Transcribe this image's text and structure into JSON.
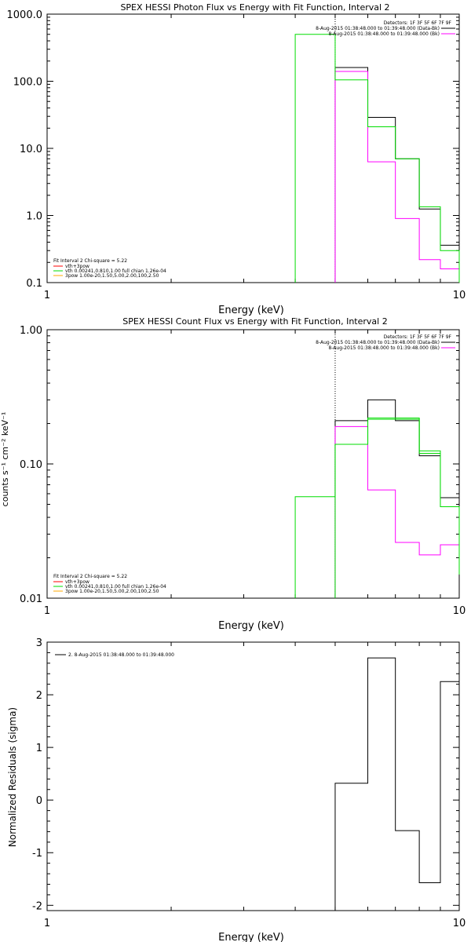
{
  "chart_data": [
    {
      "type": "line",
      "title": "SPEX HESSI Photon Flux vs Energy with Fit Function, Interval 2",
      "xlabel": "Energy (keV)",
      "ylabel": "",
      "xscale": "log",
      "yscale": "log",
      "xlim": [
        1,
        10
      ],
      "ylim": [
        0.1,
        1000
      ],
      "x_ticks": [
        {
          "v": 1,
          "label": "1"
        },
        {
          "v": 10,
          "label": "10"
        }
      ],
      "y_ticks": [
        {
          "v": 0.1,
          "label": "0.1"
        },
        {
          "v": 1,
          "label": "1.0"
        },
        {
          "v": 10,
          "label": "10.0"
        },
        {
          "v": 100,
          "label": "100.0"
        },
        {
          "v": 1000,
          "label": "1000.0"
        }
      ],
      "vline": 5,
      "bins": [
        4,
        5,
        6,
        7,
        8,
        9,
        10
      ],
      "series": [
        {
          "name": "8-Aug-2015 01:38:48.000 to 01:39:48.000 (Data-Bk)",
          "color": "#000000",
          "values": [
            null,
            160,
            29,
            7.0,
            1.25,
            0.36,
            0.13
          ]
        },
        {
          "name": "8-Aug-2015 01:38:48.000 to 01:39:48.000 (Bk)",
          "color": "#ff00ff",
          "values": [
            null,
            140,
            6.3,
            0.9,
            0.22,
            0.16,
            0.21
          ]
        },
        {
          "name": "",
          "color": "#00dd00",
          "values": [
            500,
            105,
            21,
            7.0,
            1.35,
            0.3,
            0.1
          ]
        }
      ],
      "legend_right": {
        "detectors": "Detectors: 1F 3F 5F 6F 7F 9F",
        "entries": [
          {
            "text": "8-Aug-2015 01:38:48.000 to 01:39:48.000 (Data-Bk)",
            "color": "#000000"
          },
          {
            "text": "8-Aug-2015 01:38:48.000 to 01:39:48.000 (Bk)",
            "color": "#ff00ff"
          }
        ]
      },
      "legend_left": {
        "heading": "Fit Interval 2   Chi-square = 5.22",
        "entries": [
          {
            "text": "vth+3pow",
            "color": "#ff0000"
          },
          {
            "text": "vth 0.00241,0.810,1.00  full chian 1.26e-04",
            "color": "#00dd00"
          },
          {
            "text": "3pow 1.00e-20,1.50,5.00,2.00,100,2.50",
            "color": "#ffaa00"
          }
        ]
      }
    },
    {
      "type": "line",
      "title": "SPEX HESSI Count Flux vs Energy with Fit Function, Interval 2",
      "xlabel": "Energy (keV)",
      "ylabel": "counts s⁻¹ cm⁻² keV⁻¹",
      "xscale": "log",
      "yscale": "log",
      "xlim": [
        1,
        10
      ],
      "ylim": [
        0.01,
        1
      ],
      "x_ticks": [
        {
          "v": 1,
          "label": "1"
        },
        {
          "v": 10,
          "label": "10"
        }
      ],
      "y_ticks": [
        {
          "v": 0.01,
          "label": "0.01"
        },
        {
          "v": 0.1,
          "label": "0.10"
        },
        {
          "v": 1,
          "label": "1.00"
        }
      ],
      "vline": 5,
      "bins": [
        4,
        5,
        6,
        7,
        8,
        9,
        10
      ],
      "series": [
        {
          "name": "8-Aug-2015 01:38:48.000 to 01:39:48.000 (Data-Bk)",
          "color": "#000000",
          "values": [
            null,
            0.21,
            0.3,
            0.21,
            0.115,
            0.056,
            0.025
          ]
        },
        {
          "name": "8-Aug-2015 01:38:48.000 to 01:39:48.000 (Bk)",
          "color": "#ff00ff",
          "values": [
            null,
            0.19,
            0.064,
            0.026,
            0.021,
            0.025,
            0.041
          ]
        },
        {
          "name": "",
          "color": "#00dd00",
          "values": [
            0.057,
            0.14,
            0.215,
            0.215,
            0.125,
            0.048,
            0.015
          ]
        },
        {
          "name": "",
          "color": "#00dd00",
          "values": [
            null,
            0.14,
            0.22,
            0.22,
            0.12,
            0.048,
            0.02
          ]
        }
      ],
      "legend_right": {
        "detectors": "Detectors: 1F 3F 5F 6F 7F 9F",
        "entries": [
          {
            "text": "8-Aug-2015 01:38:48.000 to 01:39:48.000 (Data-Bk)",
            "color": "#000000"
          },
          {
            "text": "8-Aug-2015 01:38:48.000 to 01:39:48.000 (Bk)",
            "color": "#ff00ff"
          }
        ]
      },
      "legend_left": {
        "heading": "Fit Interval 2   Chi-square = 5.22",
        "entries": [
          {
            "text": "vth+3pow",
            "color": "#ff0000"
          },
          {
            "text": "vth 0.00241,0.810,1.00  full chian 1.26e-04",
            "color": "#00dd00"
          },
          {
            "text": "3pow 1.00e-20,1.50,5.00,2.00,100,2.50",
            "color": "#ffaa00"
          }
        ]
      }
    },
    {
      "type": "line",
      "title": "",
      "xlabel": "Energy (keV)",
      "ylabel": "Normalized Residuals (sigma)",
      "xscale": "log",
      "yscale": "linear",
      "xlim": [
        1,
        10
      ],
      "ylim": [
        -2.1,
        3.0
      ],
      "x_ticks": [
        {
          "v": 1,
          "label": "1"
        },
        {
          "v": 10,
          "label": "10"
        }
      ],
      "y_ticks": [
        {
          "v": -2,
          "label": "-2"
        },
        {
          "v": -1,
          "label": "-1"
        },
        {
          "v": 0,
          "label": "0"
        },
        {
          "v": 1,
          "label": "1"
        },
        {
          "v": 2,
          "label": "2"
        },
        {
          "v": 3,
          "label": "3"
        }
      ],
      "bins": [
        5,
        6,
        7,
        8,
        9,
        10
      ],
      "series": [
        {
          "name": "2.  8-Aug-2015 01:38:48.000 to 01:39:48.000",
          "color": "#000000",
          "values": [
            0.32,
            2.7,
            -0.58,
            -1.57,
            2.25,
            1.95
          ]
        }
      ],
      "legend_left": {
        "entries": [
          {
            "text": "2.  8-Aug-2015 01:38:48.000 to 01:39:48.000",
            "color": "#000000"
          }
        ]
      }
    }
  ]
}
